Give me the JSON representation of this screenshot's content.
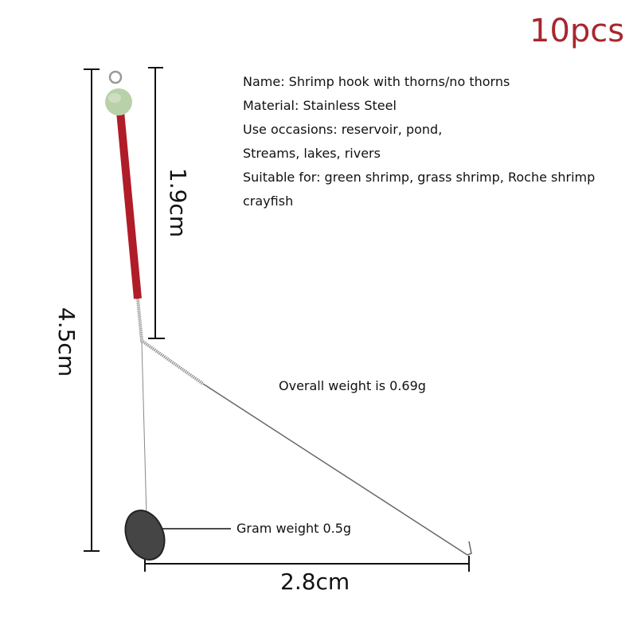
{
  "badge": {
    "text": "10pcs",
    "color": "#a8262e"
  },
  "specs": [
    "Name: Shrimp hook with thorns/no thorns",
    "Material: Stainless Steel",
    "Use occasions: reservoir, pond,",
    "Streams, lakes, rivers",
    "Suitable for: green shrimp, grass shrimp, Roche shrimp",
    "crayfish"
  ],
  "annotations": {
    "overall_weight": "Overall weight is 0.69g",
    "gram_weight": "Gram weight 0.5g"
  },
  "dimensions": {
    "total_length": "4.5cm",
    "rod_length": "1.9cm",
    "width": "2.8cm"
  },
  "colors": {
    "rod": "#b01c28",
    "bead": "#b9d1a9",
    "weight": "#454545"
  }
}
